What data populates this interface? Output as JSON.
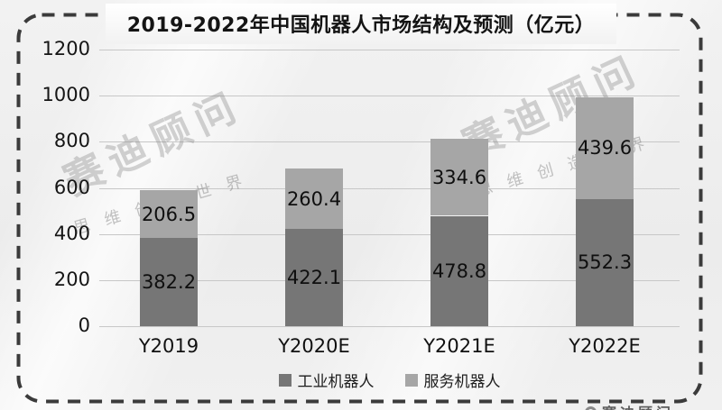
{
  "title": "2019-2022年中国机器人市场结构及预测（亿元）",
  "chart_data": {
    "type": "bar",
    "stacked": true,
    "categories": [
      "Y2019",
      "Y2020E",
      "Y2021E",
      "Y2022E"
    ],
    "series": [
      {
        "name": "工业机器人",
        "color": "#767676",
        "values": [
          382.2,
          422.1,
          478.8,
          552.3
        ]
      },
      {
        "name": "服务机器人",
        "color": "#a6a6a6",
        "values": [
          206.5,
          260.4,
          334.6,
          439.6
        ]
      }
    ],
    "title": "2019-2022年中国机器人市场结构及预测（亿元）",
    "xlabel": "",
    "ylabel": "",
    "ylim": [
      0,
      1200
    ],
    "yticks": [
      0,
      200,
      400,
      600,
      800,
      1000,
      1200
    ],
    "grid": true,
    "legend_position": "bottom",
    "value_labels": true
  },
  "watermark": {
    "brand": "赛迪顾问",
    "tagline": "思维创造世界"
  },
  "colors": {
    "industrial_series": "#767676",
    "service_series": "#a6a6a6",
    "gridline": "#c7c7c7",
    "dashed_border": "#3b3b3b",
    "text": "#141414",
    "background": "#efefef"
  }
}
